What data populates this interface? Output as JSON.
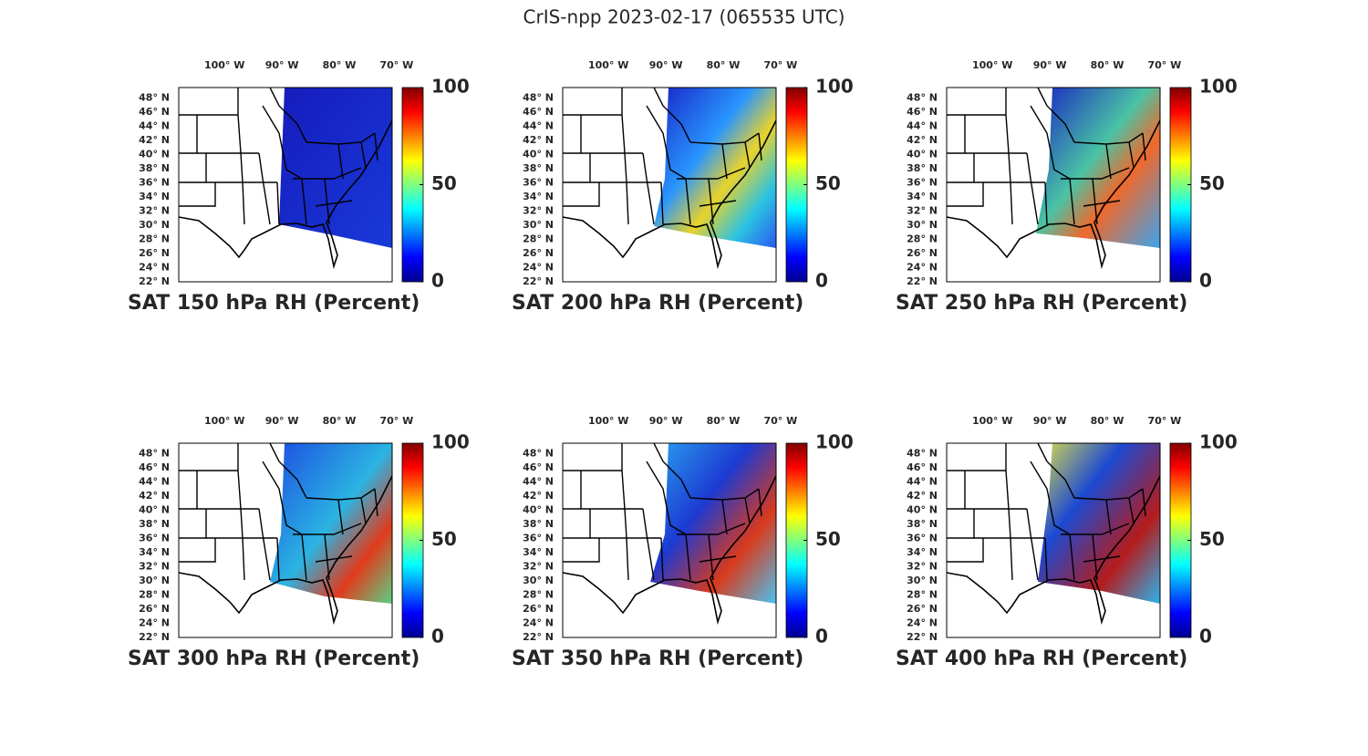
{
  "title": "CrIS-npp 2023-02-17 (065535 UTC)",
  "panels": [
    {
      "title": "SAT 150 hPa RH (Percent)"
    },
    {
      "title": "SAT 200 hPa RH (Percent)"
    },
    {
      "title": "SAT 250 hPa RH (Percent)"
    },
    {
      "title": "SAT 300 hPa RH (Percent)"
    },
    {
      "title": "SAT 350 hPa RH (Percent)"
    },
    {
      "title": "SAT 400 hPa RH (Percent)"
    }
  ],
  "lonlim": [
    -107.5,
    -70.3
  ],
  "latlim": [
    22,
    49.5
  ],
  "lon_ticks": [
    {
      "value": -100,
      "label": "100° W"
    },
    {
      "value": -90,
      "label": "90° W"
    },
    {
      "value": -80,
      "label": "80° W"
    },
    {
      "value": -70,
      "label": "70° W"
    }
  ],
  "lat_ticks": [
    {
      "value": 22,
      "label": "22° N"
    },
    {
      "value": 24,
      "label": "24° N"
    },
    {
      "value": 26,
      "label": "26° N"
    },
    {
      "value": 28,
      "label": "28° N"
    },
    {
      "value": 30,
      "label": "30° N"
    },
    {
      "value": 32,
      "label": "32° N"
    },
    {
      "value": 34,
      "label": "34° N"
    },
    {
      "value": 36,
      "label": "36° N"
    },
    {
      "value": 38,
      "label": "38° N"
    },
    {
      "value": 40,
      "label": "40° N"
    },
    {
      "value": 42,
      "label": "42° N"
    },
    {
      "value": 44,
      "label": "44° N"
    },
    {
      "value": 46,
      "label": "46° N"
    },
    {
      "value": 48,
      "label": "48° N"
    }
  ],
  "colorbar_lim": [
    0,
    100
  ],
  "colorbar_ticks": [
    0,
    50,
    100
  ]
}
